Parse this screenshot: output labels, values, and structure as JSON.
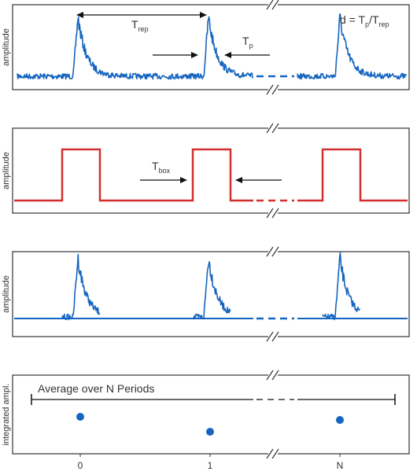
{
  "colors": {
    "signal": "#1565c0",
    "box": "#d32f2f",
    "frame": "#333333",
    "dot": "#1565c0"
  },
  "panels": {
    "p1": {
      "ylabel": "amplitude",
      "formula": {
        "d": "d = T",
        "sub1": "p",
        "slash": "/T",
        "sub2": "rep"
      },
      "trep": {
        "base": "T",
        "sub": "rep"
      },
      "tp": {
        "base": "T",
        "sub": "p"
      }
    },
    "p2": {
      "ylabel": "amplitude",
      "tbox": {
        "base": "T",
        "sub": "box"
      }
    },
    "p3": {
      "ylabel": "amplitude"
    },
    "p4": {
      "ylabel": "integrated ampl.",
      "average_label": "Average over N Periods",
      "ticks": [
        "0",
        "1",
        "N"
      ]
    }
  },
  "break_mark": "//"
}
